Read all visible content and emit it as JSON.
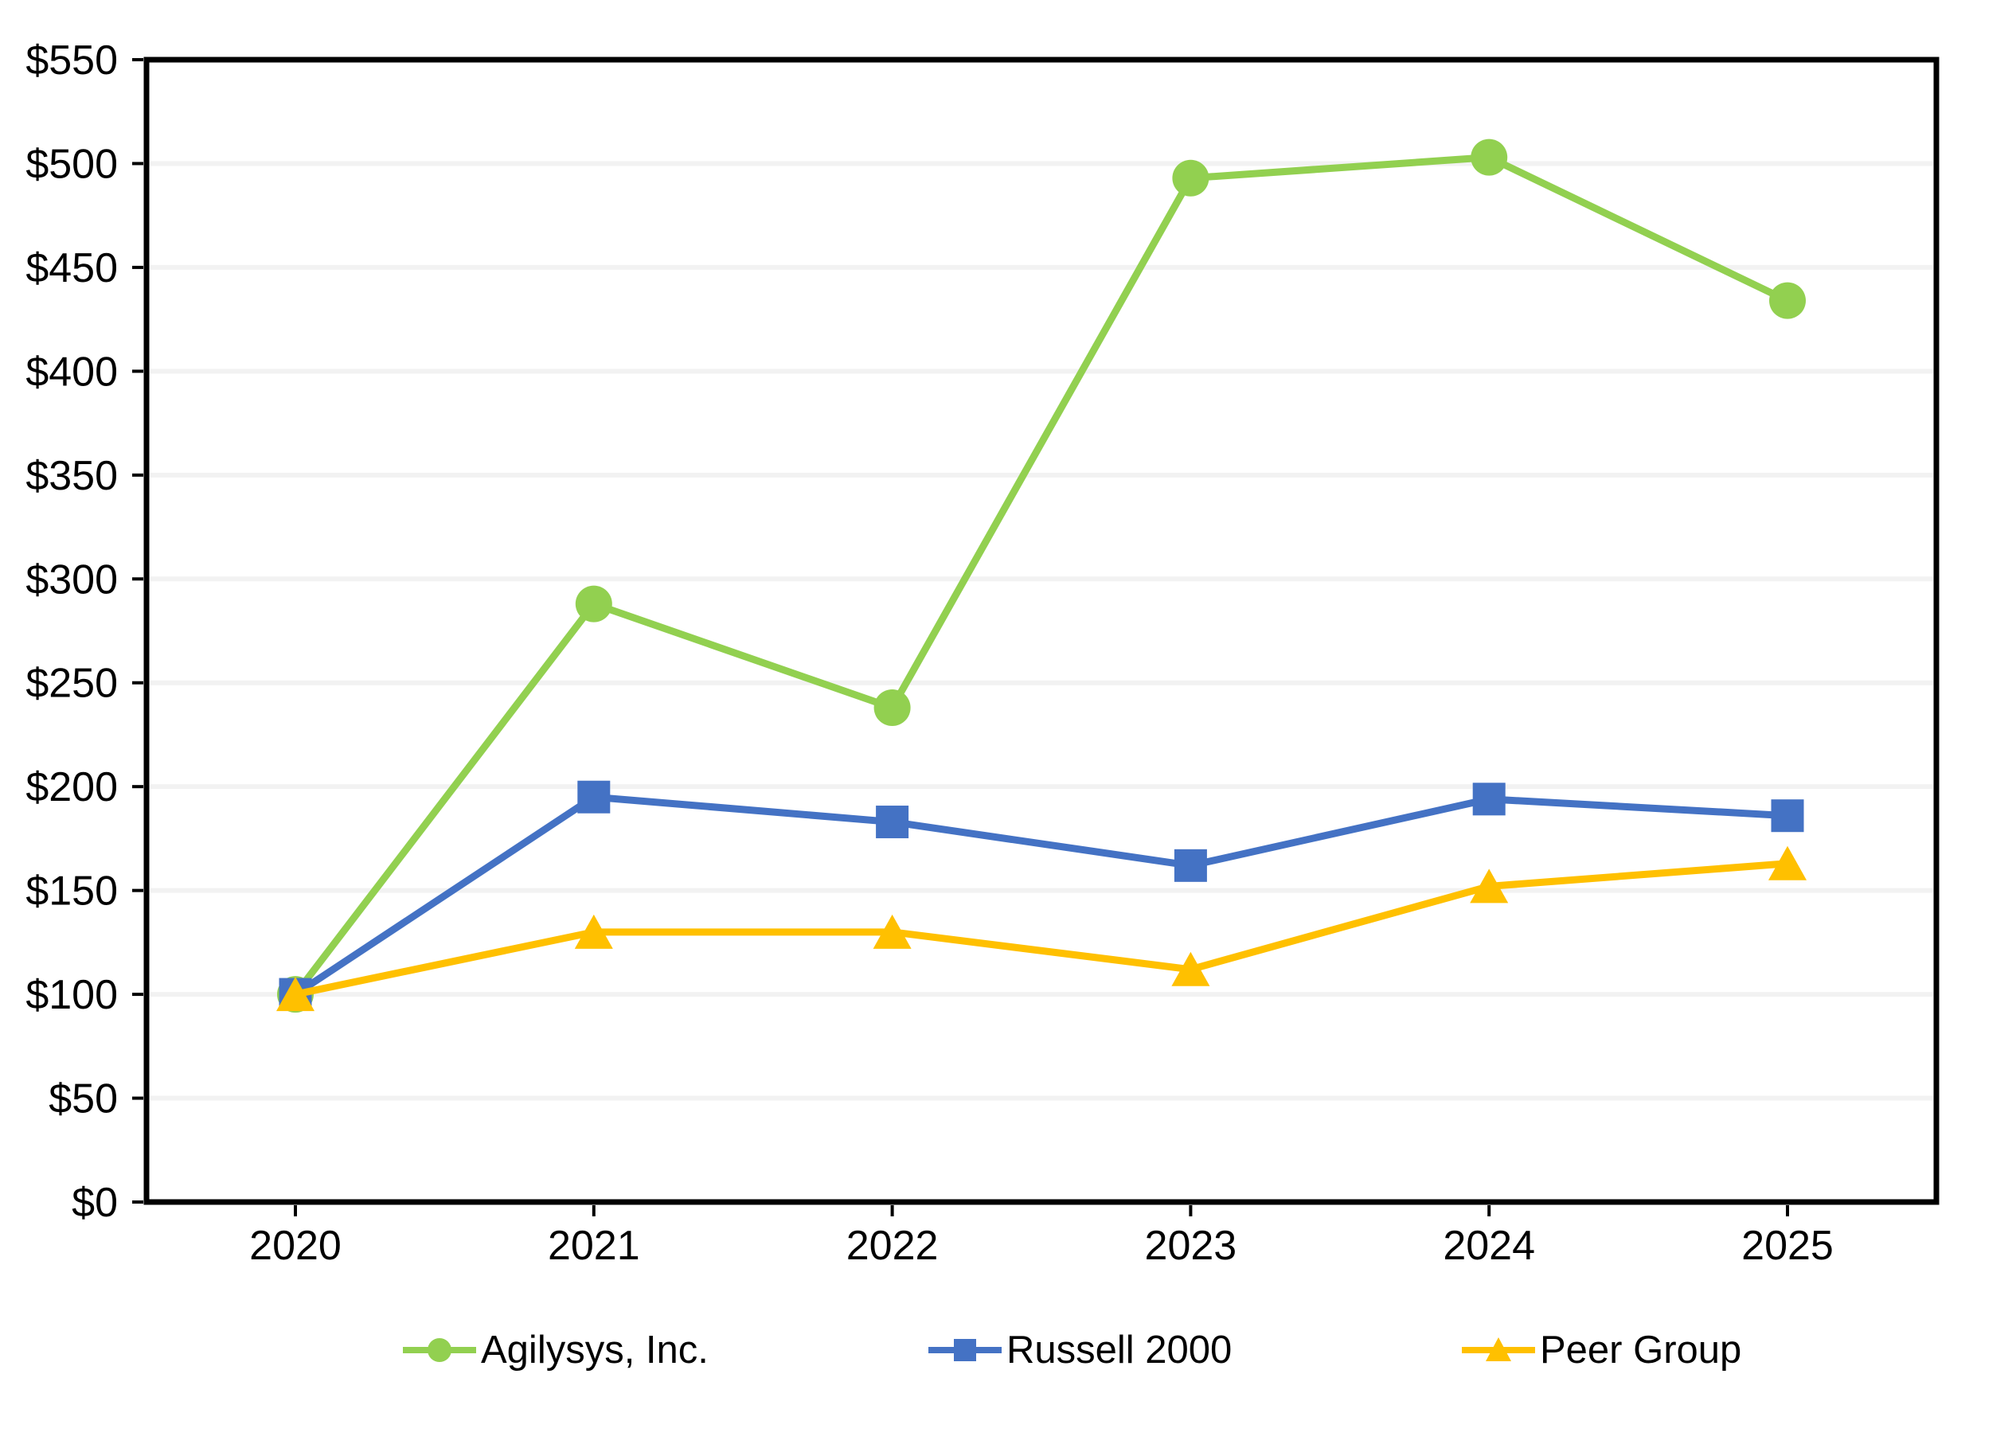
{
  "figure": {
    "background_color": "#ffffff",
    "plot_border_color": "#000000",
    "gridline_color": "#f2f2f2",
    "text_color": "#000000"
  },
  "chart_data": {
    "type": "line",
    "title": "",
    "categories": [
      "2020",
      "2021",
      "2022",
      "2023",
      "2024",
      "2025"
    ],
    "x": [
      2020,
      2021,
      2022,
      2023,
      2024,
      2025
    ],
    "series": [
      {
        "name": "Agilysys, Inc.",
        "color": "#92D050",
        "marker": "circle",
        "values": [
          100,
          288,
          238,
          493,
          503,
          434
        ]
      },
      {
        "name": "Russell 2000",
        "color": "#4472C4",
        "marker": "square",
        "values": [
          100,
          195,
          183,
          162,
          194,
          186
        ]
      },
      {
        "name": "Peer Group",
        "color": "#FFC000",
        "marker": "triangle",
        "values": [
          100,
          130,
          130,
          112,
          152,
          163
        ]
      }
    ],
    "y_axis": {
      "min": 0,
      "max": 550,
      "step": 50,
      "tick_prefix": "$",
      "labels": [
        "$0",
        "$50",
        "$100",
        "$150",
        "$200",
        "$250",
        "$300",
        "$350",
        "$400",
        "$450",
        "$500",
        "$550"
      ]
    },
    "x_axis": {
      "labels": [
        "2020",
        "2021",
        "2022",
        "2023",
        "2024",
        "2025"
      ]
    },
    "grid": true,
    "gridlines": "horizontal-only",
    "legend_position": "bottom",
    "legend": [
      {
        "label": "Agilysys, Inc.",
        "color": "#92D050",
        "marker": "circle"
      },
      {
        "label": "Russell 2000",
        "color": "#4472C4",
        "marker": "square"
      },
      {
        "label": "Peer Group",
        "color": "#FFC000",
        "marker": "triangle"
      }
    ]
  }
}
